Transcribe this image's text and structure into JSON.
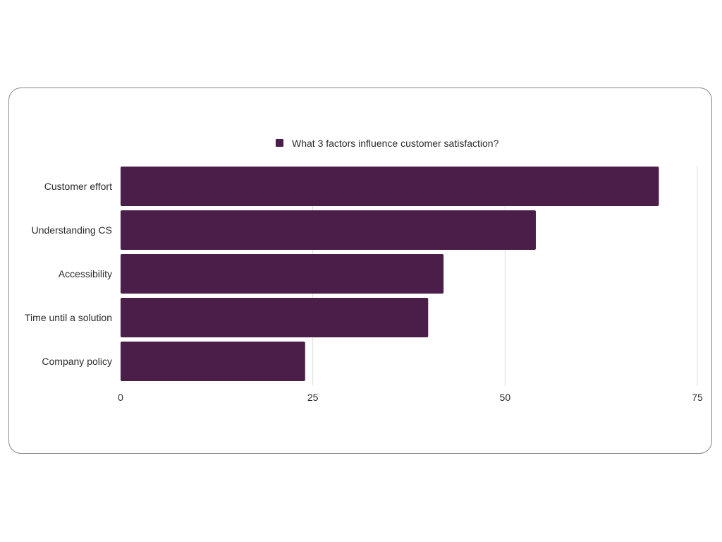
{
  "chart_data": {
    "type": "bar",
    "orientation": "horizontal",
    "categories": [
      "Customer effort",
      "Understanding CS",
      "Accessibility",
      "Time until a solution",
      "Company policy"
    ],
    "series": [
      {
        "name": "What 3 factors influence customer satisfaction?",
        "values": [
          70,
          54,
          42,
          40,
          24
        ],
        "color": "#4a1e48"
      }
    ],
    "xlim": [
      0,
      75
    ],
    "xticks": [
      "0",
      "25",
      "50",
      "75"
    ],
    "title": "",
    "xlabel": "",
    "ylabel": "",
    "grid": true,
    "legend_position": "top-center"
  }
}
